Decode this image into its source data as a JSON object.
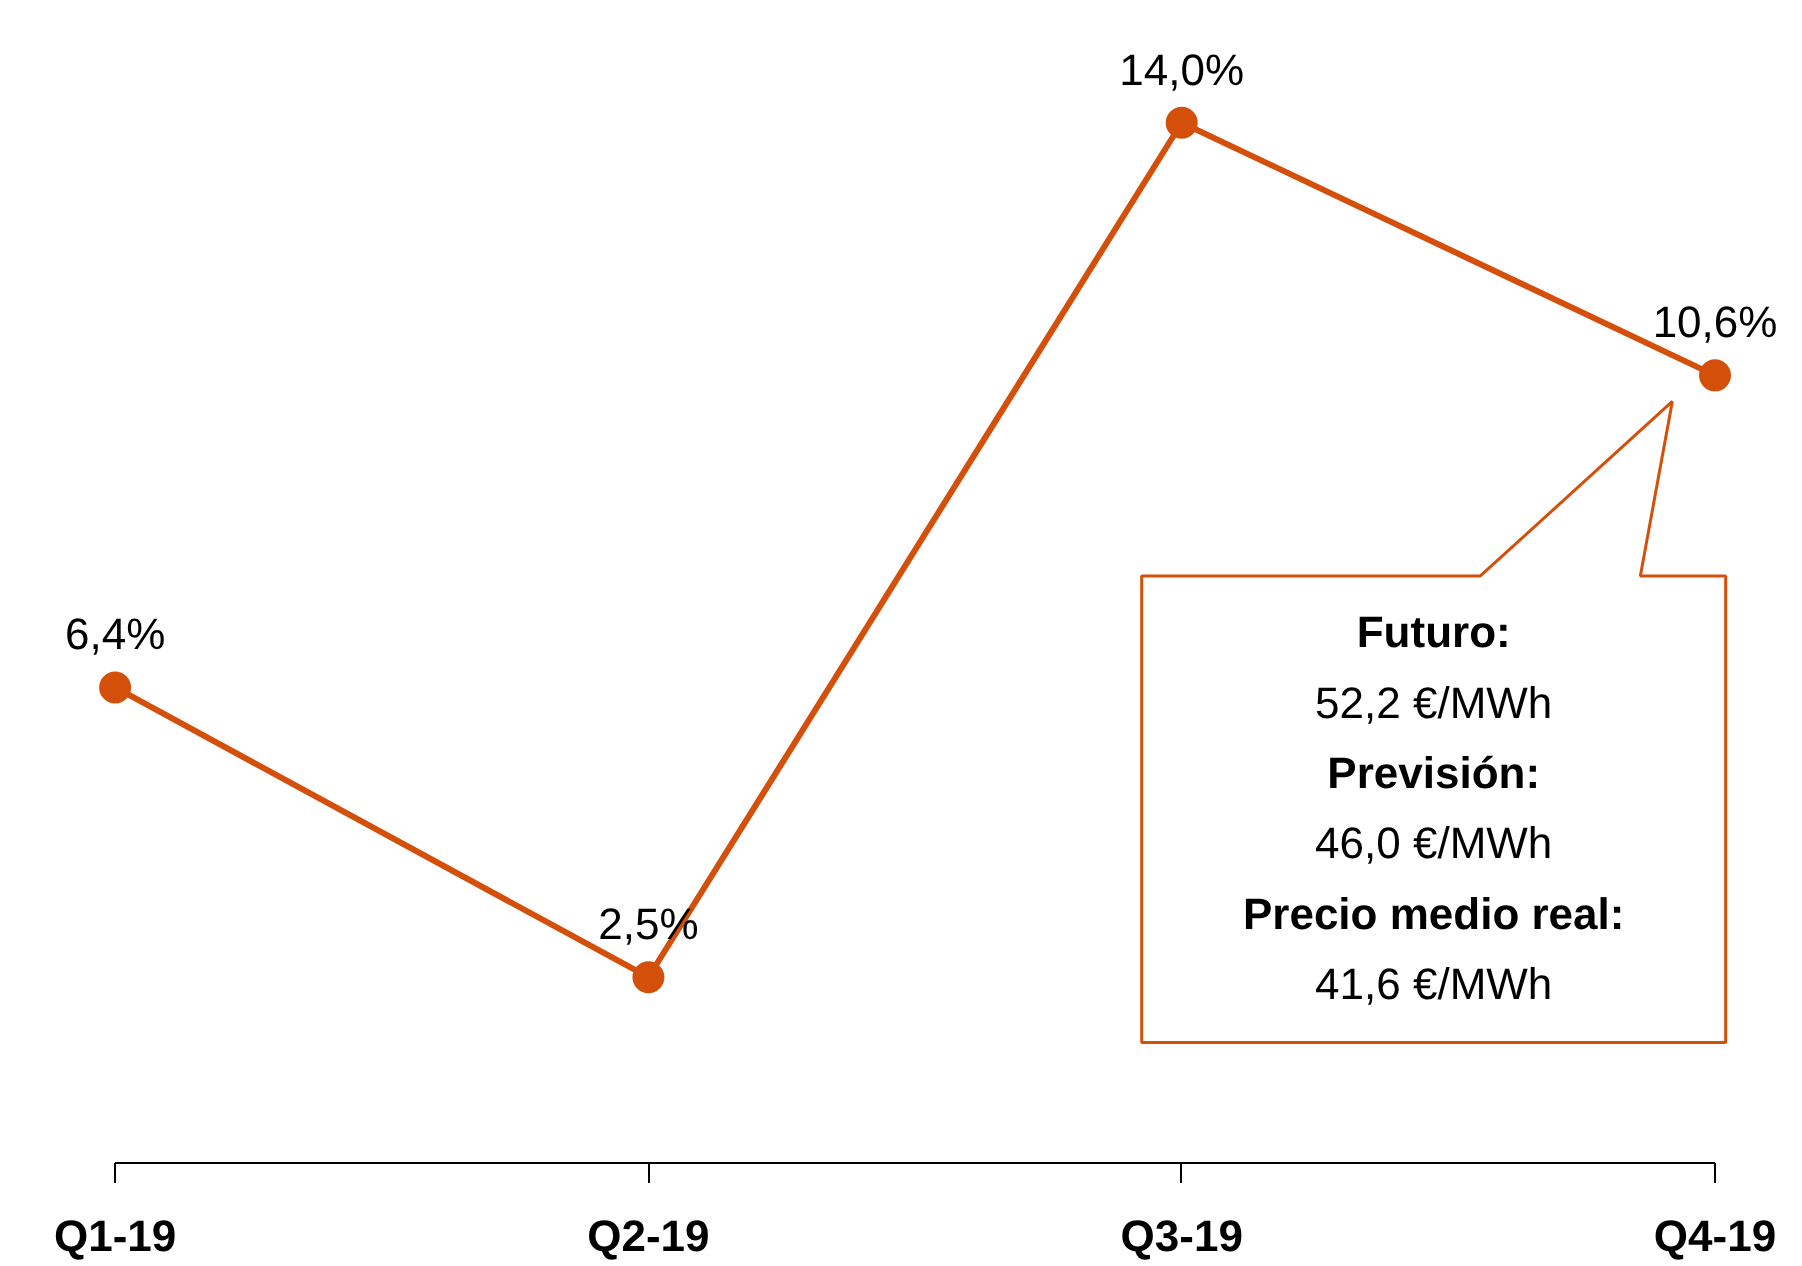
{
  "chart_data": {
    "type": "line",
    "categories": [
      "Q1-19",
      "Q2-19",
      "Q3-19",
      "Q4-19"
    ],
    "series": [
      {
        "color": "#d4500a",
        "values": [
          6.4,
          2.5,
          14.0,
          10.6
        ],
        "value_labels": [
          "6,4%",
          "2,5%",
          "14,0%",
          "10,6%"
        ]
      }
    ],
    "marker": "circle",
    "line_style": "solid",
    "grid": false,
    "tick_labels": "x",
    "annotations": [
      "Futuro:",
      "52,2 €/MWh",
      "Previsión:",
      "46,0 €/MWh",
      "Precio medio real:",
      "41,6 €/MWh"
    ]
  }
}
